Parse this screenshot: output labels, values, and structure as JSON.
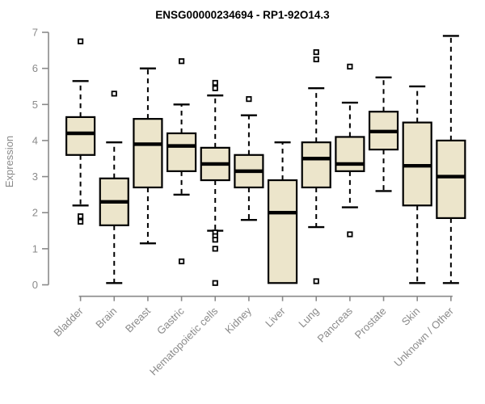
{
  "chart_data": {
    "type": "boxplot",
    "title": "ENSG00000234694 - RP1-92O14.3",
    "ylabel": "Expression",
    "xlabel": "",
    "ylim": [
      0,
      7
    ],
    "yticks": [
      0,
      1,
      2,
      3,
      4,
      5,
      6,
      7
    ],
    "grid": false,
    "legend": "none",
    "colors": {
      "box_fill": "#ece5cb",
      "box_border": "#000000",
      "median": "#000000",
      "whisker": "#000000",
      "outlier_fill": "#ffffff",
      "axis": "#8a8a8a",
      "tick_label": "#8a8a8a",
      "title": "#000000"
    },
    "categories": [
      "Bladder",
      "Brain",
      "Breast",
      "Gastric",
      "Hematopoietic cells",
      "Kidney",
      "Liver",
      "Lung",
      "Pancreas",
      "Prostate",
      "Skin",
      "Unknown / Other"
    ],
    "boxes": [
      {
        "category": "Bladder",
        "whisker_low": 2.2,
        "q1": 3.6,
        "median": 4.2,
        "q3": 4.65,
        "whisker_high": 5.65,
        "outliers": [
          6.75,
          1.9,
          1.75
        ]
      },
      {
        "category": "Brain",
        "whisker_low": 0.05,
        "q1": 1.65,
        "median": 2.3,
        "q3": 2.95,
        "whisker_high": 3.95,
        "outliers": [
          5.3
        ]
      },
      {
        "category": "Breast",
        "whisker_low": 1.15,
        "q1": 2.7,
        "median": 3.9,
        "q3": 4.6,
        "whisker_high": 6.0,
        "outliers": []
      },
      {
        "category": "Gastric",
        "whisker_low": 2.5,
        "q1": 3.15,
        "median": 3.85,
        "q3": 4.2,
        "whisker_high": 5.0,
        "outliers": [
          6.2,
          0.65
        ]
      },
      {
        "category": "Hematopoietic cells",
        "whisker_low": 1.5,
        "q1": 2.9,
        "median": 3.35,
        "q3": 3.8,
        "whisker_high": 5.25,
        "outliers": [
          5.6,
          5.45,
          1.45,
          1.35,
          1.25,
          1.0,
          0.05
        ]
      },
      {
        "category": "Kidney",
        "whisker_low": 1.8,
        "q1": 2.7,
        "median": 3.15,
        "q3": 3.6,
        "whisker_high": 4.7,
        "outliers": [
          5.15
        ]
      },
      {
        "category": "Liver",
        "whisker_low": 0.05,
        "q1": 0.05,
        "median": 2.0,
        "q3": 2.9,
        "whisker_high": 3.95,
        "outliers": []
      },
      {
        "category": "Lung",
        "whisker_low": 1.6,
        "q1": 2.7,
        "median": 3.5,
        "q3": 3.95,
        "whisker_high": 5.45,
        "outliers": [
          6.45,
          6.25,
          0.1
        ]
      },
      {
        "category": "Pancreas",
        "whisker_low": 2.15,
        "q1": 3.15,
        "median": 3.35,
        "q3": 4.1,
        "whisker_high": 5.05,
        "outliers": [
          6.05,
          1.4
        ]
      },
      {
        "category": "Prostate",
        "whisker_low": 2.6,
        "q1": 3.75,
        "median": 4.25,
        "q3": 4.8,
        "whisker_high": 5.75,
        "outliers": []
      },
      {
        "category": "Skin",
        "whisker_low": 0.05,
        "q1": 2.2,
        "median": 3.3,
        "q3": 4.5,
        "whisker_high": 5.5,
        "outliers": []
      },
      {
        "category": "Unknown / Other",
        "whisker_low": 0.05,
        "q1": 1.85,
        "median": 3.0,
        "q3": 4.0,
        "whisker_high": 6.9,
        "outliers": []
      }
    ]
  }
}
